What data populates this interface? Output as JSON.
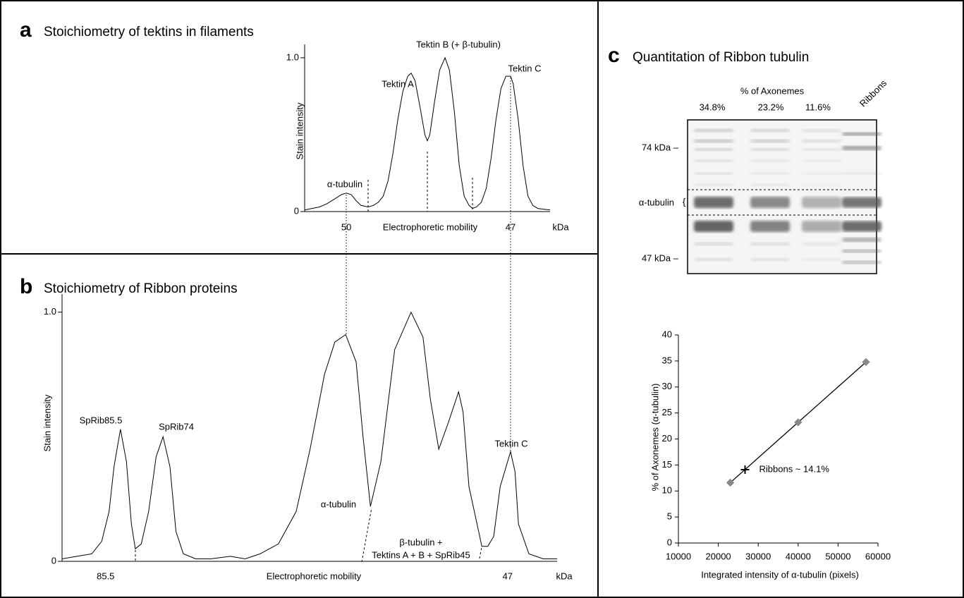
{
  "chart_data": [
    {
      "type": "line",
      "panel_label": "a",
      "title": "Stoichiometry of tektins in filaments",
      "ylabel": "Stain intensity",
      "xlabel": "Electrophoretic mobility",
      "x_unit": "kDa",
      "color": "#000000",
      "x": [
        0,
        3,
        6,
        9,
        12,
        15,
        17,
        19,
        21,
        23,
        25.9,
        28,
        30,
        32,
        34,
        36,
        38,
        40,
        42,
        43.4,
        45,
        47,
        49,
        50,
        51,
        53,
        55,
        57.2,
        59,
        61,
        63,
        65,
        67,
        68.4,
        70,
        72,
        74,
        76,
        78,
        80,
        82,
        83.9,
        85,
        87,
        89,
        91,
        93,
        95,
        100
      ],
      "values": [
        0.01,
        0.02,
        0.03,
        0.05,
        0.08,
        0.11,
        0.12,
        0.11,
        0.07,
        0.04,
        0.03,
        0.04,
        0.06,
        0.1,
        0.2,
        0.38,
        0.6,
        0.78,
        0.88,
        0.9,
        0.85,
        0.68,
        0.5,
        0.46,
        0.5,
        0.72,
        0.92,
        1.0,
        0.92,
        0.65,
        0.3,
        0.1,
        0.04,
        0.02,
        0.03,
        0.06,
        0.15,
        0.35,
        0.6,
        0.8,
        0.88,
        0.88,
        0.83,
        0.6,
        0.3,
        0.1,
        0.04,
        0.02,
        0.01
      ],
      "xlim": [
        0,
        100
      ],
      "xticks": [
        {
          "value": 17,
          "label": "50"
        },
        {
          "value": 83.9,
          "label": "47"
        }
      ],
      "ylim": [
        0,
        1.05
      ],
      "yticks": [
        0,
        {
          "value": 1,
          "label": "1.0"
        }
      ],
      "annotations": [
        "α-tubulin",
        "Tektin A",
        "Tektin B (+ β-tubulin)",
        "Tektin C"
      ]
    },
    {
      "type": "line",
      "panel_label": "b",
      "title": "Stoichiometry of Ribbon proteins",
      "ylabel": "Stain intensity",
      "xlabel": "Electrophoretic mobility",
      "x_unit": "kDa",
      "color": "#000000",
      "x": [
        0,
        3,
        6,
        8,
        9.5,
        10.5,
        11.8,
        13,
        14,
        14.8,
        16,
        17.5,
        19,
        20.4,
        21.8,
        23,
        24.5,
        27,
        30,
        34,
        37,
        40,
        43.7,
        47.3,
        50.1,
        53,
        55.1,
        57.3,
        59.4,
        60.8,
        62.3,
        64.4,
        67.2,
        70.5,
        72.9,
        74.4,
        76.1,
        77.9,
        80.1,
        81,
        82.2,
        84.8,
        86,
        87.2,
        88.5,
        90.6,
        91.5,
        92.2,
        94.3,
        97.2,
        100
      ],
      "values": [
        0.01,
        0.02,
        0.03,
        0.08,
        0.2,
        0.38,
        0.53,
        0.4,
        0.15,
        0.05,
        0.07,
        0.2,
        0.42,
        0.5,
        0.38,
        0.12,
        0.03,
        0.01,
        0.01,
        0.02,
        0.01,
        0.03,
        0.07,
        0.2,
        0.45,
        0.75,
        0.88,
        0.91,
        0.8,
        0.5,
        0.22,
        0.4,
        0.85,
        1.0,
        0.9,
        0.65,
        0.45,
        0.55,
        0.68,
        0.6,
        0.3,
        0.06,
        0.06,
        0.1,
        0.3,
        0.44,
        0.36,
        0.15,
        0.03,
        0.01,
        0.01
      ],
      "xlim": [
        0,
        100
      ],
      "xticks": [
        {
          "value": 8.8,
          "label": "85.5"
        },
        {
          "value": 90,
          "label": "47"
        }
      ],
      "ylim": [
        0,
        1.05
      ],
      "yticks": [
        0,
        {
          "value": 1,
          "label": "1.0"
        }
      ],
      "annotations": [
        "SpRib85.5",
        "SpRib74",
        "α-tubulin",
        "β-tubulin +",
        "Tektins A + B + SpRib45",
        "Tektin C"
      ]
    },
    {
      "type": "scatter",
      "panel_label": "c",
      "title": "Quantitation of Ribbon tubulin",
      "ylabel": "% of Axonemes (α-tubulin)",
      "xlabel": "Integrated intensity of α-tubulin (pixels)",
      "color": "#888888",
      "x": [
        23000,
        40000,
        57000
      ],
      "values": [
        11.6,
        23.2,
        34.8
      ],
      "xlim": [
        10000,
        60000
      ],
      "xticks": [
        10000,
        20000,
        30000,
        40000,
        50000,
        60000
      ],
      "ylim": [
        0,
        40
      ],
      "yticks": [
        0,
        5,
        10,
        15,
        20,
        25,
        30,
        35,
        40
      ],
      "ribbons": {
        "x": 26700,
        "value": 14.1,
        "label": "Ribbons ~ 14.1%"
      }
    }
  ],
  "gel": {
    "header": "% of Axonemes",
    "lanes": [
      "34.8%",
      "23.2%",
      "11.6%",
      "Ribbons"
    ],
    "markers": [
      "74 kDa –",
      "α-tubulin",
      "47 kDa –"
    ]
  }
}
